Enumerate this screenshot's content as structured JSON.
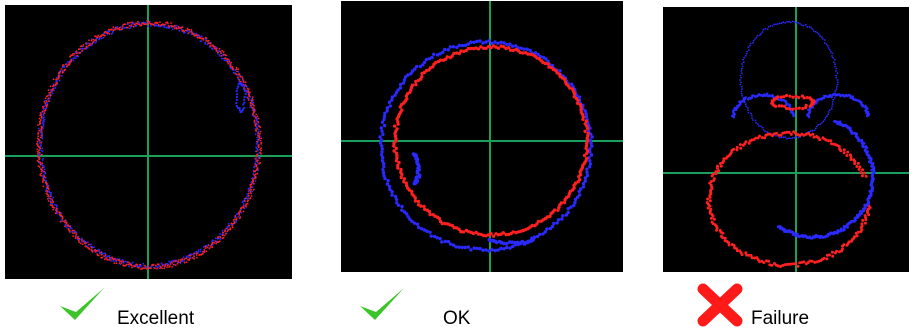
{
  "panels": [
    {
      "label": "Excellent",
      "status": "success",
      "icon": "check-icon"
    },
    {
      "label": "OK",
      "status": "success",
      "icon": "check-icon"
    },
    {
      "label": "Failure",
      "status": "failure",
      "icon": "x-icon"
    }
  ],
  "colors": {
    "background": "#000000",
    "crosshair": "#1aa05a",
    "series_red": "#ff2020",
    "series_blue": "#2a2aff",
    "check": "#3cc42a",
    "cross": "#ff1a1a"
  }
}
